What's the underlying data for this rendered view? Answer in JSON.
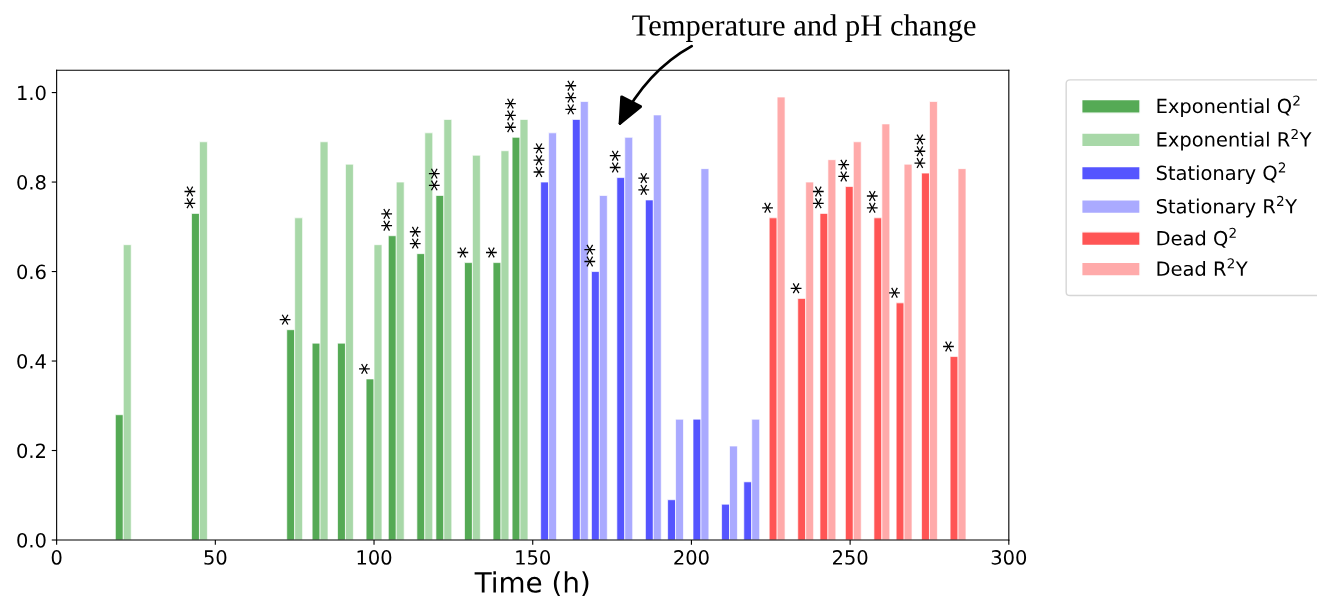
{
  "chart_data": {
    "type": "bar",
    "xlabel": "Time (h)",
    "xlim": [
      0,
      300
    ],
    "xticks": [
      0,
      50,
      100,
      150,
      200,
      250,
      300
    ],
    "ylim": [
      0,
      1.05
    ],
    "yticks": [
      {
        "value": 0,
        "label": "0.0"
      },
      0.2,
      0.4,
      0.6,
      0.8,
      {
        "value": 1,
        "label": "1.0"
      }
    ],
    "grid": false,
    "legend": "top right",
    "series": [
      {
        "name": "Exponential Q$^{2}$",
        "color": "#55aa55",
        "x": [
          21,
          45,
          75,
          83,
          91,
          100,
          107,
          116,
          122,
          131,
          140,
          146
        ],
        "values": [
          0.28,
          0.73,
          0.47,
          0.44,
          0.44,
          0.36,
          0.68,
          0.64,
          0.77,
          0.62,
          0.62,
          0.9
        ]
      },
      {
        "name": "Exponential R$^{2}$Y",
        "color": "#a8d8a8",
        "x": [
          21,
          45,
          75,
          83,
          91,
          100,
          107,
          116,
          122,
          131,
          140,
          146
        ],
        "values": [
          0.66,
          0.89,
          0.72,
          0.89,
          0.84,
          0.66,
          0.8,
          0.91,
          0.94,
          0.86,
          0.87,
          0.94
        ]
      },
      {
        "name": "Stationary Q$^{2}$",
        "color": "#5555ff",
        "x": [
          155,
          165,
          171,
          179,
          188,
          195,
          203,
          212,
          219
        ],
        "values": [
          0.8,
          0.94,
          0.6,
          0.81,
          0.76,
          0.09,
          0.27,
          0.08,
          0.13
        ]
      },
      {
        "name": "Stationary R$^{2}$Y",
        "color": "#aaaaff",
        "x": [
          155,
          165,
          171,
          179,
          188,
          195,
          203,
          212,
          219
        ],
        "values": [
          0.91,
          0.98,
          0.77,
          0.9,
          0.95,
          0.27,
          0.83,
          0.21,
          0.27
        ]
      },
      {
        "name": "Dead Q$^{2}$",
        "color": "#ff5555",
        "x": [
          227,
          236,
          243,
          251,
          260,
          267,
          275,
          284
        ],
        "values": [
          0.72,
          0.54,
          0.73,
          0.79,
          0.72,
          0.53,
          0.82,
          0.41
        ]
      },
      {
        "name": "Dead R$^{2}$Y",
        "color": "#ffaaaa",
        "x": [
          227,
          236,
          243,
          251,
          260,
          267,
          275,
          284
        ],
        "values": [
          0.99,
          0.8,
          0.85,
          0.89,
          0.93,
          0.84,
          0.98,
          0.83
        ]
      }
    ],
    "annotations": [
      "Temperature and pH change",
      {
        "text": "**",
        "x": 45,
        "y": 0.73
      },
      {
        "text": "*",
        "x": 75,
        "y": 0.47
      },
      {
        "text": "*",
        "x": 100,
        "y": 0.36
      },
      {
        "text": "**",
        "x": 107,
        "y": 0.68
      },
      {
        "text": "**",
        "x": 116,
        "y": 0.64
      },
      {
        "text": "**",
        "x": 122,
        "y": 0.77
      },
      {
        "text": "*",
        "x": 131,
        "y": 0.62
      },
      {
        "text": "*",
        "x": 140,
        "y": 0.62
      },
      {
        "text": "***",
        "x": 146,
        "y": 0.9
      },
      {
        "text": "***",
        "x": 155,
        "y": 0.8
      },
      {
        "text": "***",
        "x": 165,
        "y": 0.94
      },
      {
        "text": "**",
        "x": 171,
        "y": 0.6
      },
      {
        "text": "**",
        "x": 179,
        "y": 0.81
      },
      {
        "text": "**",
        "x": 188,
        "y": 0.76
      },
      {
        "text": "*",
        "x": 227,
        "y": 0.72
      },
      {
        "text": "*",
        "x": 236,
        "y": 0.54
      },
      {
        "text": "**",
        "x": 243,
        "y": 0.73
      },
      {
        "text": "**",
        "x": 251,
        "y": 0.79
      },
      {
        "text": "**",
        "x": 260,
        "y": 0.72
      },
      {
        "text": "*",
        "x": 267,
        "y": 0.53
      },
      {
        "text": "***",
        "x": 275,
        "y": 0.82
      },
      {
        "text": "*",
        "x": 284,
        "y": 0.41
      }
    ]
  }
}
